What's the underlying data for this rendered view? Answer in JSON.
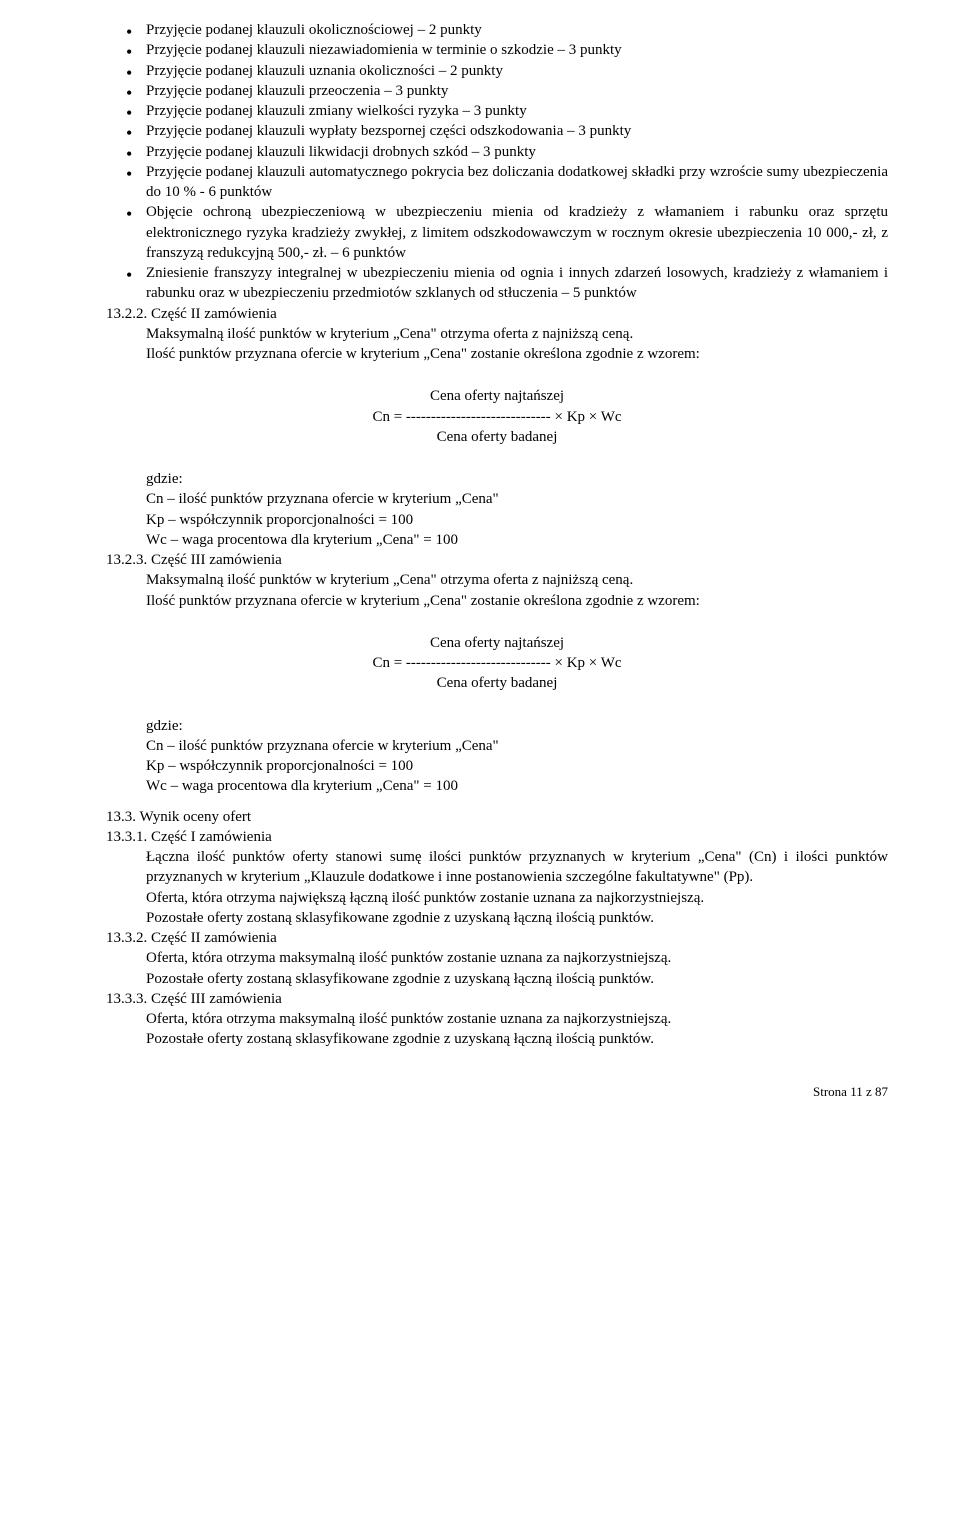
{
  "bullets": [
    "Przyjęcie podanej klauzuli okolicznościowej – 2 punkty",
    "Przyjęcie podanej klauzuli niezawiadomienia w terminie o szkodzie – 3 punkty",
    "Przyjęcie podanej klauzuli uznania okoliczności – 2 punkty",
    "Przyjęcie podanej klauzuli przeoczenia – 3 punkty",
    "Przyjęcie podanej klauzuli zmiany wielkości ryzyka – 3 punkty",
    "Przyjęcie podanej klauzuli wypłaty bezspornej części odszkodowania – 3 punkty",
    "Przyjęcie podanej klauzuli likwidacji drobnych szkód – 3 punkty",
    "Przyjęcie podanej klauzuli automatycznego pokrycia bez doliczania dodatkowej składki przy wzroście sumy ubezpieczenia do 10 % - 6 punktów",
    "Objęcie ochroną ubezpieczeniową w ubezpieczeniu mienia od kradzieży z włamaniem i rabunku oraz sprzętu elektronicznego ryzyka kradzieży zwykłej, z limitem odszkodowawczym w rocznym okresie ubezpieczenia 10 000,- zł, z franszyzą redukcyjną 500,- zł. – 6 punktów",
    "Zniesienie franszyzy integralnej w ubezpieczeniu mienia od ognia i innych zdarzeń losowych, kradzieży z włamaniem i rabunku oraz w ubezpieczeniu przedmiotów szklanych od stłuczenia – 5 punktów"
  ],
  "s1322": {
    "head": "13.2.2. Część II zamówienia",
    "line1": "Maksymalną ilość punktów w kryterium „Cena\" otrzyma oferta z najniższą ceną.",
    "line2": "Ilość punktów przyznana ofercie w kryterium „Cena\" zostanie określona zgodnie z wzorem:"
  },
  "formula": {
    "top": "Cena oferty najtańszej",
    "mid": "Cn = ----------------------------- × Kp × Wc",
    "bot": "Cena oferty badanej"
  },
  "where": {
    "label": "gdzie:",
    "l1": "Cn – ilość punktów przyznana ofercie w kryterium „Cena\"",
    "l2": "Kp – współczynnik proporcjonalności = 100",
    "l3": "Wc – waga procentowa dla kryterium „Cena\" = 100"
  },
  "s1323": {
    "head": "13.2.3. Część III zamówienia",
    "line1": "Maksymalną ilość punktów w kryterium „Cena\" otrzyma oferta z najniższą ceną.",
    "line2": "Ilość punktów przyznana ofercie w kryterium „Cena\" zostanie określona zgodnie z wzorem:"
  },
  "s133": {
    "head": "13.3.   Wynik oceny ofert"
  },
  "s1331": {
    "head": "13.3.1. Część I zamówienia",
    "l1": "Łączna ilość punktów oferty stanowi sumę ilości punktów przyznanych w kryterium „Cena\" (Cn) i ilości punktów przyznanych w kryterium „Klauzule dodatkowe i inne postanowienia szczególne fakultatywne\" (Pp).",
    "l2": "Oferta, która otrzyma największą łączną ilość punktów zostanie uznana za najkorzystniejszą.",
    "l3": "Pozostałe oferty zostaną sklasyfikowane zgodnie z uzyskaną łączną ilością punktów."
  },
  "s1332": {
    "head": "13.3.2. Część II zamówienia",
    "l1": "Oferta, która otrzyma maksymalną ilość punktów zostanie uznana za najkorzystniejszą.",
    "l2": "Pozostałe oferty zostaną sklasyfikowane zgodnie z uzyskaną łączną ilością punktów."
  },
  "s1333": {
    "head": "13.3.3. Część III zamówienia",
    "l1": "Oferta, która otrzyma maksymalną ilość punktów zostanie uznana za najkorzystniejszą.",
    "l2": "Pozostałe oferty zostaną sklasyfikowane zgodnie z uzyskaną łączną ilością punktów."
  },
  "footer": "Strona 11 z 87"
}
